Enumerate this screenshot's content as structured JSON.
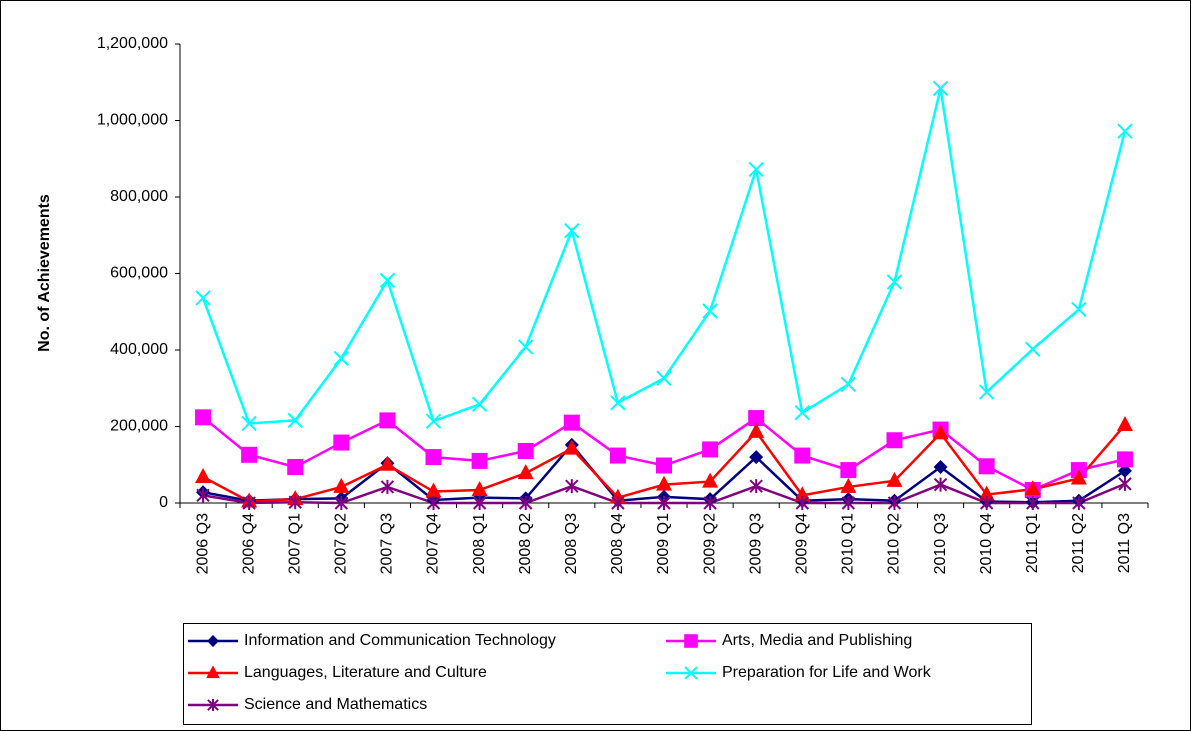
{
  "chart_data": {
    "type": "line",
    "ylabel": "No. of Achievements",
    "categories": [
      "2006 Q3",
      "2006 Q4",
      "2007 Q1",
      "2007 Q2",
      "2007 Q3",
      "2007 Q4",
      "2008 Q1",
      "2008 Q2",
      "2008 Q3",
      "2008 Q4",
      "2009 Q1",
      "2009 Q2",
      "2009 Q3",
      "2009 Q4",
      "2010 Q1",
      "2010 Q2",
      "2010 Q3",
      "2010 Q4",
      "2011 Q1",
      "2011 Q2",
      "2011 Q3"
    ],
    "series": [
      {
        "name": "Information and Communication Technology",
        "color": "#000080",
        "marker": "diamond",
        "values": [
          28000,
          6000,
          10000,
          12000,
          104000,
          8000,
          14000,
          12000,
          152000,
          6000,
          16000,
          10000,
          120000,
          6000,
          10000,
          6000,
          94000,
          4000,
          2000,
          6000,
          84000
        ]
      },
      {
        "name": "Arts, Media and Publishing",
        "color": "#ff00ff",
        "marker": "square",
        "values": [
          224000,
          126000,
          94000,
          158000,
          216000,
          120000,
          110000,
          136000,
          210000,
          124000,
          98000,
          140000,
          222000,
          124000,
          86000,
          164000,
          192000,
          96000,
          34000,
          86000,
          114000
        ]
      },
      {
        "name": "Languages, Literature and Culture",
        "color": "#ff0000",
        "marker": "triangle",
        "values": [
          68000,
          4000,
          10000,
          42000,
          100000,
          30000,
          34000,
          78000,
          142000,
          14000,
          48000,
          56000,
          186000,
          20000,
          42000,
          58000,
          182000,
          22000,
          36000,
          64000,
          204000
        ]
      },
      {
        "name": "Preparation for Life and Work",
        "color": "#00ffff",
        "marker": "x",
        "values": [
          536000,
          208000,
          216000,
          378000,
          582000,
          214000,
          258000,
          408000,
          712000,
          262000,
          326000,
          502000,
          872000,
          236000,
          310000,
          578000,
          1084000,
          290000,
          402000,
          506000,
          972000
        ]
      },
      {
        "name": "Science and Mathematics",
        "color": "#800080",
        "marker": "asterisk",
        "values": [
          20000,
          0,
          2000,
          0,
          42000,
          0,
          0,
          0,
          44000,
          0,
          0,
          0,
          44000,
          0,
          0,
          0,
          48000,
          0,
          0,
          0,
          50000
        ]
      }
    ],
    "ylim": [
      0,
      1200000
    ],
    "yticks": [
      0,
      {
        "value": 200000,
        "label": "200,000"
      },
      {
        "value": 400000,
        "label": "400,000"
      },
      {
        "value": 600000,
        "label": "600,000"
      },
      {
        "value": 800000,
        "label": "800,000"
      },
      {
        "value": 1000000,
        "label": "1,000,000"
      },
      {
        "value": 1200000,
        "label": "1,200,000"
      }
    ],
    "grid": false,
    "legend": "bottom"
  }
}
